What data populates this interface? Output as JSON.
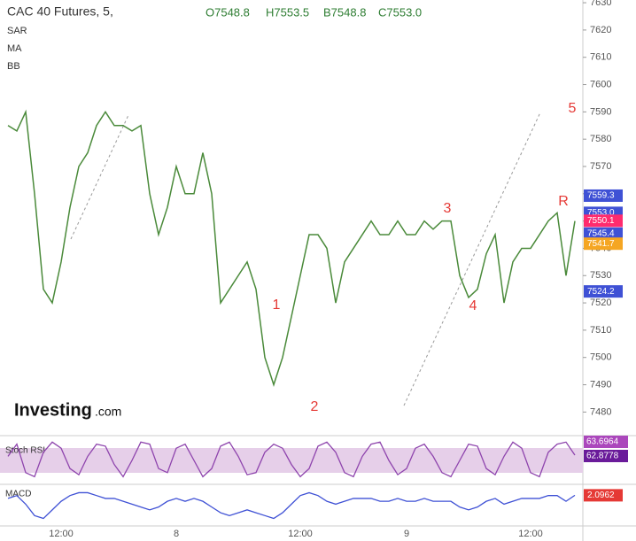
{
  "chart_data": {
    "type": "line",
    "title": "CAC 40 Futures, 5,",
    "ohlc": [
      "O7548.8",
      "H7553.5",
      "B7548.8",
      "C7553.0"
    ],
    "indicators": [
      "SAR",
      "MA",
      "BB"
    ],
    "logo": [
      "Investing",
      ".com"
    ],
    "categories": [
      null,
      null,
      null,
      null,
      null,
      null,
      "12:00",
      null,
      null,
      null,
      null,
      null,
      null,
      null,
      null,
      null,
      null,
      null,
      null,
      "8",
      null,
      null,
      null,
      null,
      null,
      null,
      null,
      null,
      null,
      null,
      null,
      null,
      null,
      "12:00",
      null,
      null,
      null,
      null,
      null,
      null,
      null,
      null,
      null,
      null,
      null,
      "9",
      null,
      null,
      null,
      null,
      null,
      null,
      null,
      null,
      null,
      null,
      null,
      null,
      null,
      "12:00",
      null,
      null,
      null,
      null,
      null
    ],
    "series": [
      {
        "name": "CAC 40 Futures",
        "color": "#4a8a3a",
        "values": [
          7585,
          7583,
          7590,
          7560,
          7525,
          7520,
          7535,
          7555,
          7570,
          7575,
          7585,
          7590,
          7585,
          7585,
          7583,
          7585,
          7560,
          7545,
          7555,
          7570,
          7560,
          7560,
          7575,
          7560,
          7520,
          7525,
          7530,
          7535,
          7525,
          7500,
          7490,
          7500,
          7515,
          7530,
          7545,
          7545,
          7540,
          7520,
          7535,
          7540,
          7545,
          7550,
          7545,
          7545,
          7550,
          7545,
          7545,
          7550,
          7547,
          7550,
          7550,
          7530,
          7522,
          7525,
          7538,
          7545,
          7520,
          7535,
          7540,
          7540,
          7545,
          7550,
          7553,
          7530,
          7550
        ]
      }
    ],
    "ylim": [
      7472,
      7631
    ],
    "yticks": [
      7480,
      7490,
      7500,
      7510,
      7520,
      7530,
      7540,
      7550,
      7560,
      7570,
      7580,
      7590,
      7600,
      7610,
      7620,
      7630
    ],
    "annotations": [
      "1",
      "2",
      "3",
      "4",
      "5",
      "R"
    ],
    "price_tags": {
      "values": [
        7559.3,
        7553,
        7550.1,
        7545.4,
        7541.7,
        7524.2
      ],
      "value_labels": [
        "7559.3",
        "7553.0",
        "7550.1",
        "7545.4",
        "7541.7",
        "7524.2"
      ],
      "colors": [
        "#3f51d5",
        "#3f51d5",
        "#ff2b6e",
        "#3f51d5",
        "#f5a623",
        "#3f51d5"
      ]
    },
    "rsi": {
      "name": "Stoch RSI",
      "color": "#8e44ad",
      "ylim": [
        0,
        100
      ],
      "values": [
        60,
        90,
        20,
        10,
        70,
        95,
        80,
        30,
        15,
        60,
        90,
        85,
        40,
        10,
        50,
        95,
        90,
        30,
        20,
        80,
        90,
        50,
        10,
        30,
        85,
        95,
        60,
        15,
        20,
        70,
        90,
        80,
        40,
        10,
        30,
        85,
        95,
        70,
        20,
        10,
        60,
        90,
        95,
        50,
        15,
        30,
        80,
        90,
        60,
        20,
        10,
        50,
        90,
        85,
        30,
        15,
        60,
        95,
        80,
        20,
        10,
        70,
        90,
        95,
        63
      ],
      "last_labels": [
        "63.6964",
        "62.8778"
      ]
    },
    "macd": {
      "name": "MACD",
      "color": "#3f51d5",
      "ylim": [
        -8,
        5
      ],
      "values": [
        1,
        2,
        -1,
        -5,
        -6,
        -3,
        0,
        2,
        3,
        3,
        2,
        1,
        1,
        0,
        -1,
        -2,
        -3,
        -2,
        0,
        1,
        0,
        1,
        0,
        -2,
        -4,
        -5,
        -4,
        -3,
        -4,
        -5,
        -6,
        -4,
        -1,
        2,
        3,
        2,
        0,
        -1,
        0,
        1,
        1,
        1,
        0,
        0,
        1,
        0,
        0,
        1,
        0,
        0,
        0,
        -2,
        -3,
        -2,
        0,
        1,
        -1,
        0,
        1,
        1,
        1,
        2,
        2,
        0,
        2.0962
      ],
      "last_label": "2.0962"
    }
  }
}
